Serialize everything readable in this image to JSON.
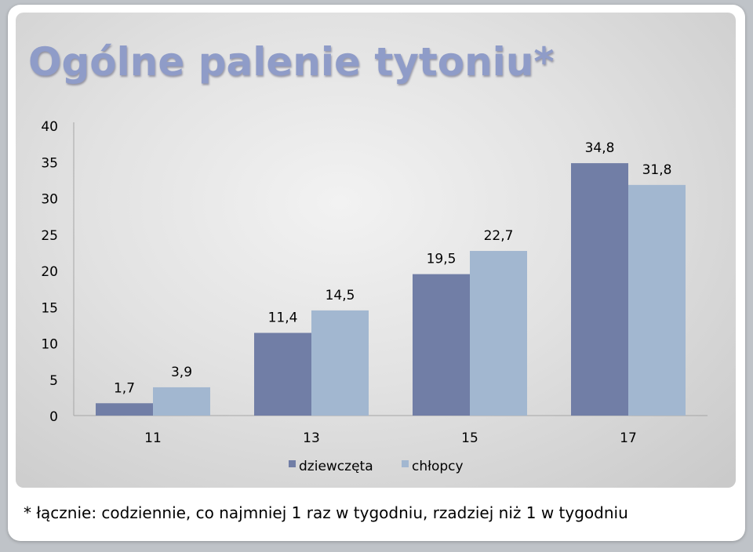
{
  "colors": {
    "title": "#8f9cc8",
    "series_0": "#717ea6",
    "series_1": "#a2b7d0",
    "axis": "#a6a6a6"
  },
  "chart_data": {
    "type": "bar",
    "title": "Ogólne palenie tytoniu*",
    "categories": [
      "11",
      "13",
      "15",
      "17"
    ],
    "series": [
      {
        "name": "dziewczęta",
        "values": [
          1.7,
          11.4,
          19.5,
          34.8
        ],
        "labels": [
          "1,7",
          "11,4",
          "19,5",
          "34,8"
        ]
      },
      {
        "name": "chłopcy",
        "values": [
          3.9,
          14.5,
          22.7,
          31.8
        ],
        "labels": [
          "3,9",
          "14,5",
          "22,7",
          "31,8"
        ]
      }
    ],
    "yticks": [
      "0",
      "5",
      "10",
      "15",
      "20",
      "25",
      "30",
      "35",
      "40"
    ],
    "ylim": [
      0,
      40
    ],
    "grid": false,
    "legend_position": "bottom",
    "footnote": "* łącznie: codziennie, co najmniej 1 raz w tygodniu, rzadziej niż 1 w tygodniu"
  }
}
